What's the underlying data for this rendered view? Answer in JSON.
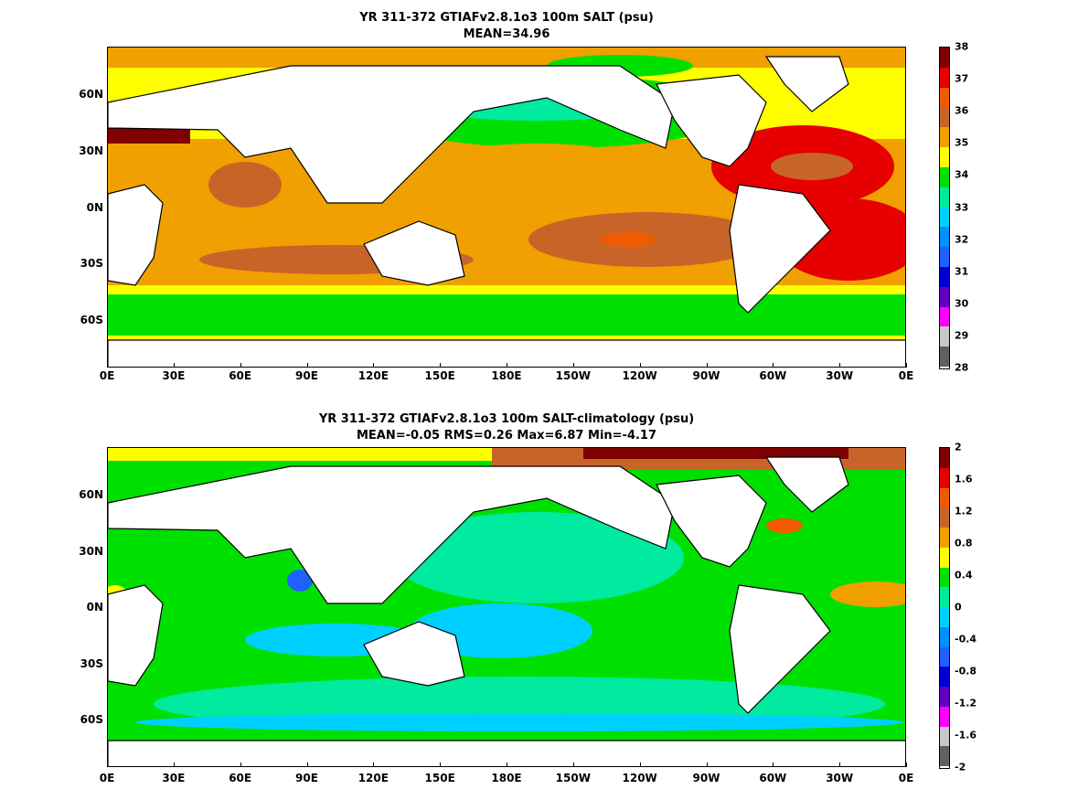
{
  "panels": [
    {
      "title_line1": "YR 311-372 GTIAFv2.8.1o3 100m SALT (psu)",
      "title_line2": "MEAN=34.96",
      "colorbar_labels": [
        "38",
        "37",
        "36",
        "35",
        "34",
        "33",
        "32",
        "31",
        "30",
        "29",
        "28"
      ],
      "colorbar_colors": [
        "#7f0000",
        "#e60000",
        "#f05a00",
        "#c86428",
        "#f0a000",
        "#ffff00",
        "#00e000",
        "#00eaa0",
        "#00d0ff",
        "#0090ff",
        "#2060ff",
        "#0000d0",
        "#6000c0",
        "#ff00ff",
        "#c8c8c8",
        "#606060"
      ]
    },
    {
      "title_line1": "YR 311-372 GTIAFv2.8.1o3 100m SALT-climatology (psu)",
      "title_line2": "MEAN=-0.05   RMS=0.26   Max=6.87   Min=-4.17",
      "colorbar_labels": [
        "2",
        "1.6",
        "1.2",
        "0.8",
        "0.4",
        "0",
        "-0.4",
        "-0.8",
        "-1.2",
        "-1.6",
        "-2"
      ],
      "colorbar_colors": [
        "#7f0000",
        "#e60000",
        "#f05a00",
        "#c86428",
        "#f0a000",
        "#ffff00",
        "#00e000",
        "#00eaa0",
        "#00d0ff",
        "#0090ff",
        "#2060ff",
        "#0000d0",
        "#6000c0",
        "#ff00ff",
        "#c8c8c8",
        "#606060"
      ]
    }
  ],
  "x_tick_labels": [
    "0E",
    "30E",
    "60E",
    "90E",
    "120E",
    "150E",
    "180E",
    "150W",
    "120W",
    "90W",
    "60W",
    "30W",
    "0E"
  ],
  "y_tick_labels": [
    "60N",
    "30N",
    "0N",
    "30S",
    "60S"
  ],
  "land_color": "#ffffff",
  "coastline_color": "#000000"
}
